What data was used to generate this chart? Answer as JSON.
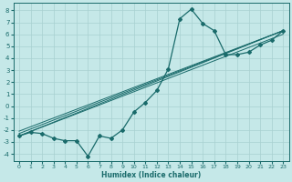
{
  "xlabel": "Humidex (Indice chaleur)",
  "background_color": "#c5e8e8",
  "grid_color": "#a8d0d0",
  "line_color": "#1a6b6b",
  "xlim": [
    -0.5,
    23.5
  ],
  "ylim": [
    -4.6,
    8.6
  ],
  "xticks": [
    0,
    1,
    2,
    3,
    4,
    5,
    6,
    7,
    8,
    9,
    10,
    11,
    12,
    13,
    14,
    15,
    16,
    17,
    18,
    19,
    20,
    21,
    22,
    23
  ],
  "yticks": [
    -4,
    -3,
    -2,
    -1,
    0,
    1,
    2,
    3,
    4,
    5,
    6,
    7,
    8
  ],
  "main_x": [
    0,
    1,
    2,
    3,
    4,
    5,
    6,
    7,
    8,
    9,
    10,
    11,
    12,
    13,
    14,
    15,
    16,
    17,
    18,
    19,
    20,
    21,
    22,
    23
  ],
  "main_y": [
    -2.5,
    -2.2,
    -2.3,
    -2.7,
    -2.9,
    -2.9,
    -4.2,
    -2.5,
    -2.7,
    -2.0,
    -0.5,
    0.3,
    1.3,
    3.1,
    7.3,
    8.1,
    6.9,
    6.3,
    4.3,
    4.3,
    4.5,
    5.1,
    5.5,
    6.3
  ],
  "ref_lines": [
    {
      "x0": 0,
      "y0": -2.5,
      "x1": 23,
      "y1": 6.0
    },
    {
      "x0": 0,
      "y0": -2.5,
      "x1": 23,
      "y1": 6.3
    },
    {
      "x0": 0,
      "y0": -2.3,
      "x1": 23,
      "y1": 6.3
    },
    {
      "x0": 0,
      "y0": -2.1,
      "x1": 23,
      "y1": 6.3
    }
  ]
}
